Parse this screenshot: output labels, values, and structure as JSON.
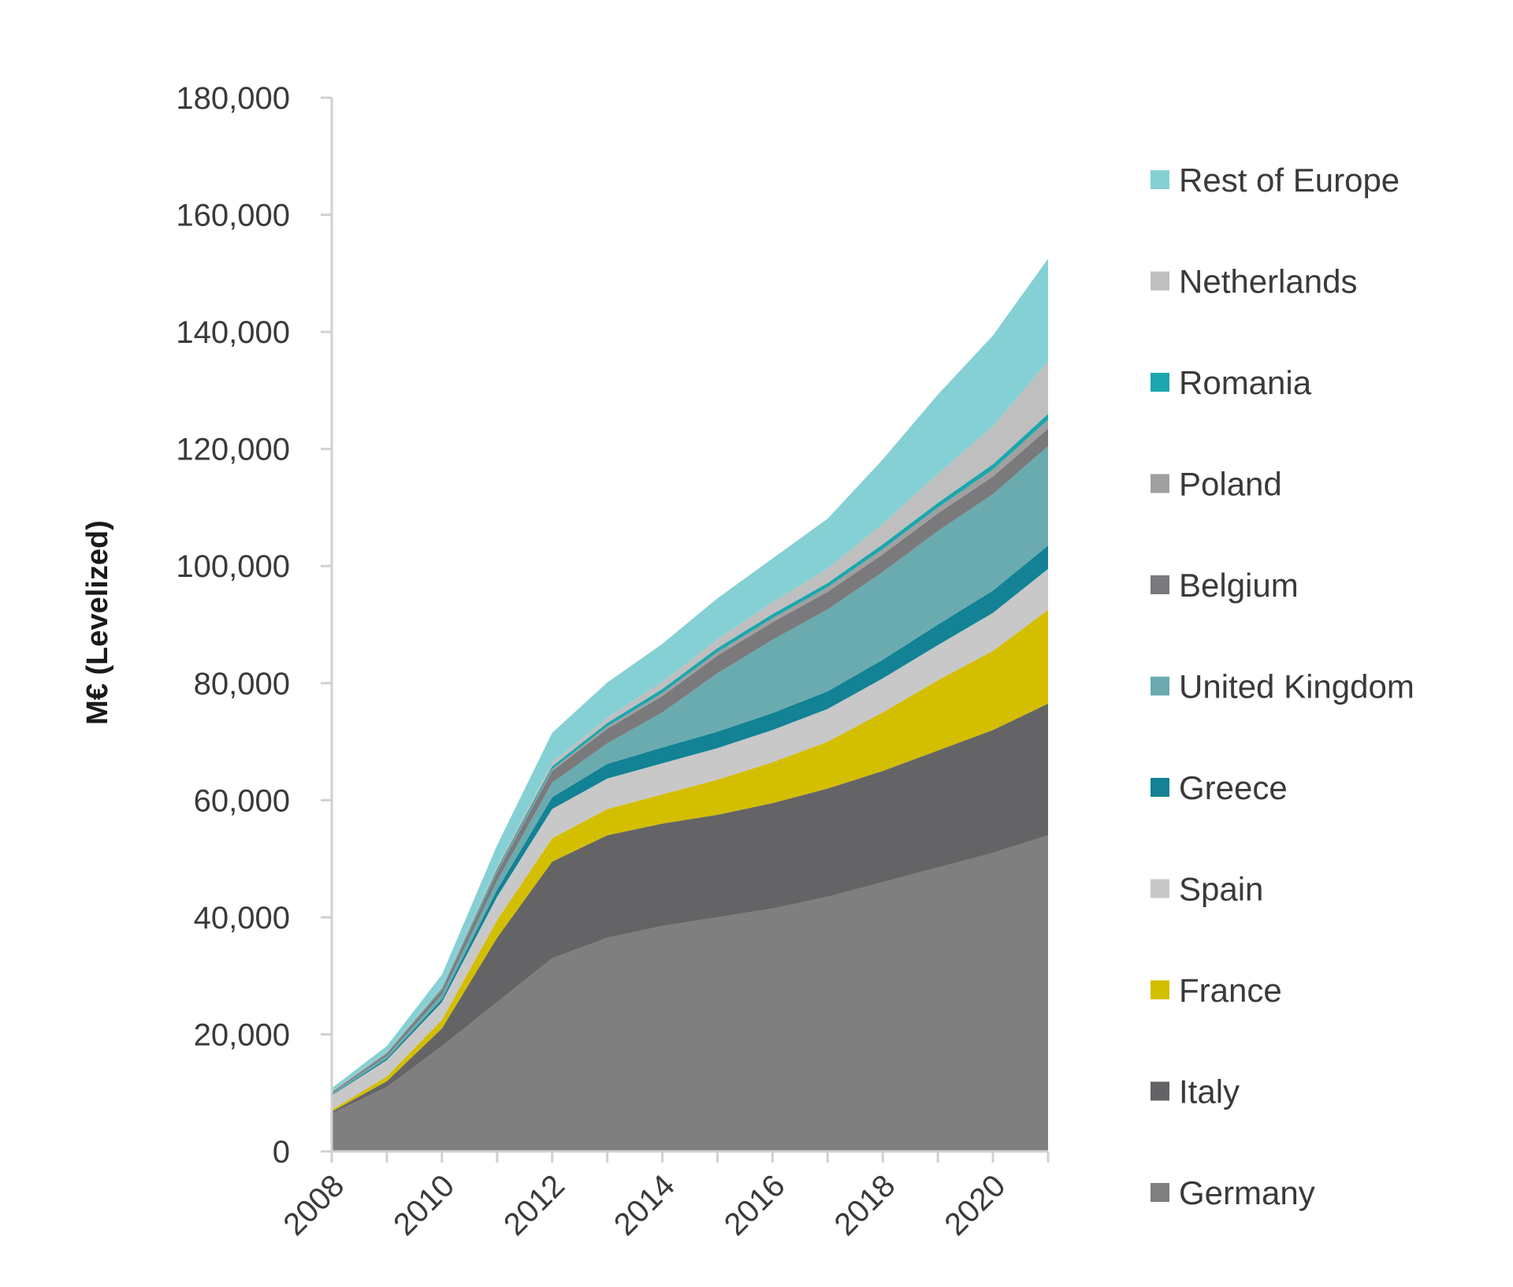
{
  "chart_data": {
    "type": "area",
    "stacked": true,
    "title": "",
    "xlabel": "",
    "ylabel": "M€ (Levelized)",
    "x": [
      2008,
      2009,
      2010,
      2011,
      2012,
      2013,
      2014,
      2015,
      2016,
      2017,
      2018,
      2019,
      2020,
      2021
    ],
    "xtick_labels": [
      "2008",
      "2010",
      "2012",
      "2014",
      "2016",
      "2018",
      "2020"
    ],
    "ylim": [
      0,
      180000
    ],
    "yticks": [
      0,
      20000,
      40000,
      60000,
      80000,
      100000,
      120000,
      140000,
      160000,
      180000
    ],
    "ytick_labels": [
      "0",
      "20,000",
      "40,000",
      "60,000",
      "80,000",
      "100,000",
      "120,000",
      "140,000",
      "160,000",
      "180,000"
    ],
    "grid": false,
    "legend_position": "right",
    "series": [
      {
        "name": "Germany",
        "color": "#7f7f7f",
        "values": [
          6500,
          11000,
          18000,
          25500,
          33000,
          36500,
          38500,
          40000,
          41500,
          43500,
          46000,
          48500,
          51000,
          54000
        ]
      },
      {
        "name": "Italy",
        "color": "#646466",
        "values": [
          300,
          1000,
          3000,
          11000,
          16500,
          17500,
          17500,
          17500,
          18000,
          18500,
          19000,
          20000,
          21000,
          22500
        ]
      },
      {
        "name": "France",
        "color": "#d4be00",
        "values": [
          300,
          800,
          1500,
          3000,
          4000,
          4500,
          5000,
          6000,
          7000,
          8000,
          10000,
          12000,
          13500,
          16000
        ]
      },
      {
        "name": "Spain",
        "color": "#c8c8c8",
        "values": [
          2500,
          2800,
          3000,
          4000,
          5000,
          5200,
          5300,
          5400,
          5500,
          5600,
          5800,
          6000,
          6500,
          7000
        ]
      },
      {
        "name": "Greece",
        "color": "#128294",
        "values": [
          100,
          300,
          500,
          1200,
          2000,
          2500,
          2700,
          2800,
          2900,
          3000,
          3200,
          3500,
          3800,
          4000
        ]
      },
      {
        "name": "United Kingdom",
        "color": "#6aabb0",
        "values": [
          200,
          400,
          800,
          1500,
          2500,
          3500,
          6000,
          10000,
          12500,
          14000,
          15000,
          16000,
          16500,
          17000
        ]
      },
      {
        "name": "Belgium",
        "color": "#7a7a7c",
        "values": [
          200,
          400,
          800,
          1500,
          2000,
          2500,
          2800,
          3000,
          3000,
          3000,
          3000,
          3000,
          3000,
          3000
        ]
      },
      {
        "name": "Poland",
        "color": "#a0a0a0",
        "values": [
          50,
          100,
          100,
          200,
          300,
          400,
          500,
          600,
          700,
          800,
          900,
          1000,
          1200,
          1500
        ]
      },
      {
        "name": "Romania",
        "color": "#1aa7ae",
        "values": [
          50,
          100,
          200,
          400,
          500,
          600,
          700,
          700,
          700,
          700,
          800,
          800,
          900,
          1000
        ]
      },
      {
        "name": "Netherlands",
        "color": "#bfbfbf",
        "values": [
          100,
          200,
          300,
          500,
          700,
          900,
          1200,
          1500,
          2000,
          2500,
          3500,
          5000,
          6500,
          9000
        ]
      },
      {
        "name": "Rest of Europe",
        "color": "#84d0d4",
        "values": [
          500,
          900,
          2000,
          3500,
          5000,
          6000,
          6500,
          7000,
          7500,
          8500,
          11000,
          13500,
          15500,
          17500
        ]
      }
    ]
  }
}
